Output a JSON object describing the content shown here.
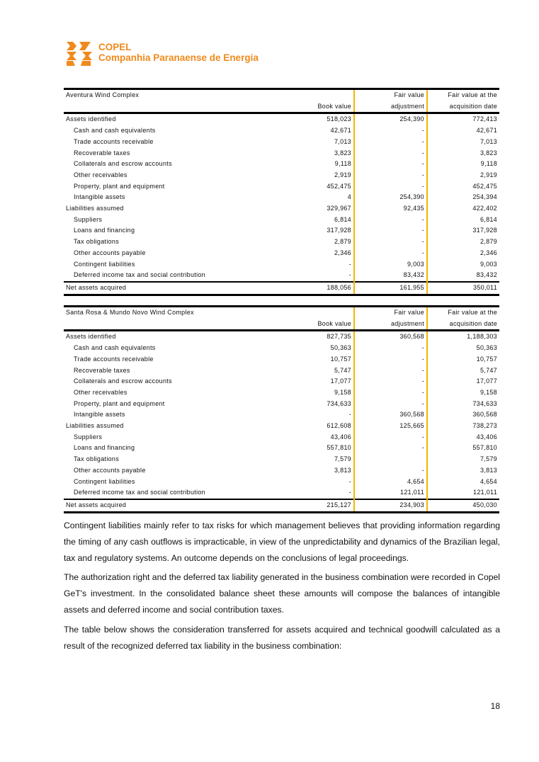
{
  "logo": {
    "name": "COPEL",
    "subtitle": "Companhia Paranaense de Energia",
    "color": "#f08a1c"
  },
  "tables": [
    {
      "title": "Aventura Wind Complex",
      "headers": {
        "book": "Book value",
        "adj1": "Fair value",
        "adj2": "adjustment",
        "fair1": "Fair value at the",
        "fair2": "acquisition date"
      },
      "rows": [
        {
          "label": "Assets identified",
          "book": "518,023",
          "adj": "254,390",
          "fair": "772,413",
          "indent": false
        },
        {
          "label": "Cash and cash equivalents",
          "book": "42,671",
          "adj": "-",
          "fair": "42,671",
          "indent": true
        },
        {
          "label": "Trade accounts receivable",
          "book": "7,013",
          "adj": "-",
          "fair": "7,013",
          "indent": true
        },
        {
          "label": "Recoverable taxes",
          "book": "3,823",
          "adj": "-",
          "fair": "3,823",
          "indent": true
        },
        {
          "label": "Collaterals and escrow accounts",
          "book": "9,118",
          "adj": "-",
          "fair": "9,118",
          "indent": true
        },
        {
          "label": "Other receivables",
          "book": "2,919",
          "adj": "-",
          "fair": "2,919",
          "indent": true
        },
        {
          "label": "Property, plant and equipment",
          "book": "452,475",
          "adj": "-",
          "fair": "452,475",
          "indent": true
        },
        {
          "label": "Intangible assets",
          "book": "4",
          "adj": "254,390",
          "fair": "254,394",
          "indent": true
        },
        {
          "label": "Liabilities assumed",
          "book": "329,967",
          "adj": "92,435",
          "fair": "422,402",
          "indent": false
        },
        {
          "label": "Suppliers",
          "book": "6,814",
          "adj": "-",
          "fair": "6,814",
          "indent": true
        },
        {
          "label": "Loans and financing",
          "book": "317,928",
          "adj": "-",
          "fair": "317,928",
          "indent": true
        },
        {
          "label": "Tax obligations",
          "book": "2,879",
          "adj": "-",
          "fair": "2,879",
          "indent": true
        },
        {
          "label": "Other accounts payable",
          "book": "2,346",
          "adj": "-",
          "fair": "2,346",
          "indent": true
        },
        {
          "label": "Contingent liabilities",
          "book": "-",
          "adj": "9,003",
          "fair": "9,003",
          "indent": true
        },
        {
          "label": "Deferred income tax and social contribution",
          "book": "-",
          "adj": "83,432",
          "fair": "83,432",
          "indent": true
        }
      ],
      "total": {
        "label": "Net assets acquired",
        "book": "188,056",
        "adj": "161,955",
        "fair": "350,011"
      }
    },
    {
      "title": "Santa Rosa & Mundo Novo Wind Complex",
      "headers": {
        "book": "Book value",
        "adj1": "Fair value",
        "adj2": "adjustment",
        "fair1": "Fair value at the",
        "fair2": "acquisition date"
      },
      "rows": [
        {
          "label": "Assets identified",
          "book": "827,735",
          "adj": "360,568",
          "fair": "1,188,303",
          "indent": false
        },
        {
          "label": "Cash and cash equivalents",
          "book": "50,363",
          "adj": "-",
          "fair": "50,363",
          "indent": true
        },
        {
          "label": "Trade accounts receivable",
          "book": "10,757",
          "adj": "-",
          "fair": "10,757",
          "indent": true
        },
        {
          "label": "Recoverable taxes",
          "book": "5,747",
          "adj": "-",
          "fair": "5,747",
          "indent": true
        },
        {
          "label": "Collaterals and escrow accounts",
          "book": "17,077",
          "adj": "-",
          "fair": "17,077",
          "indent": true
        },
        {
          "label": "Other receivables",
          "book": "9,158",
          "adj": "-",
          "fair": "9,158",
          "indent": true
        },
        {
          "label": "Property, plant and equipment",
          "book": "734,633",
          "adj": "-",
          "fair": "734,633",
          "indent": true
        },
        {
          "label": "Intangible assets",
          "book": "-",
          "adj": "360,568",
          "fair": "360,568",
          "indent": true
        },
        {
          "label": "Liabilities assumed",
          "book": "612,608",
          "adj": "125,665",
          "fair": "738,273",
          "indent": false
        },
        {
          "label": "Suppliers",
          "book": "43,406",
          "adj": "-",
          "fair": "43,406",
          "indent": true
        },
        {
          "label": "Loans and financing",
          "book": "557,810",
          "adj": "-",
          "fair": "557,810",
          "indent": true
        },
        {
          "label": "Tax obligations",
          "book": "7,579",
          "adj": "",
          "fair": "7,579",
          "indent": true
        },
        {
          "label": "Other accounts payable",
          "book": "3,813",
          "adj": "-",
          "fair": "3,813",
          "indent": true
        },
        {
          "label": "Contingent liabilities",
          "book": "-",
          "adj": "4,654",
          "fair": "4,654",
          "indent": true
        },
        {
          "label": "Deferred income tax and social contribution",
          "book": "-",
          "adj": "121,011",
          "fair": "121,011",
          "indent": true
        }
      ],
      "total": {
        "label": "Net assets acquired",
        "book": "215,127",
        "adj": "234,903",
        "fair": "450,030"
      }
    }
  ],
  "paragraphs": [
    "Contingent liabilities mainly refer to tax risks for which management believes that providing information regarding the timing of any cash outflows is impracticable, in view of the unpredictability and dynamics of the Brazilian legal, tax and regulatory systems. An outcome depends on the conclusions of legal proceedings.",
    "The authorization right and the deferred tax liability generated in the business combination were recorded in Copel GeT's investment. In the consolidated balance sheet these amounts will compose the balances of intangible assets and deferred income and social contribution taxes.",
    "The table below shows the consideration transferred for assets acquired and technical goodwill calculated as a result of the recognized deferred tax liability in the business combination:"
  ],
  "page_number": "18"
}
